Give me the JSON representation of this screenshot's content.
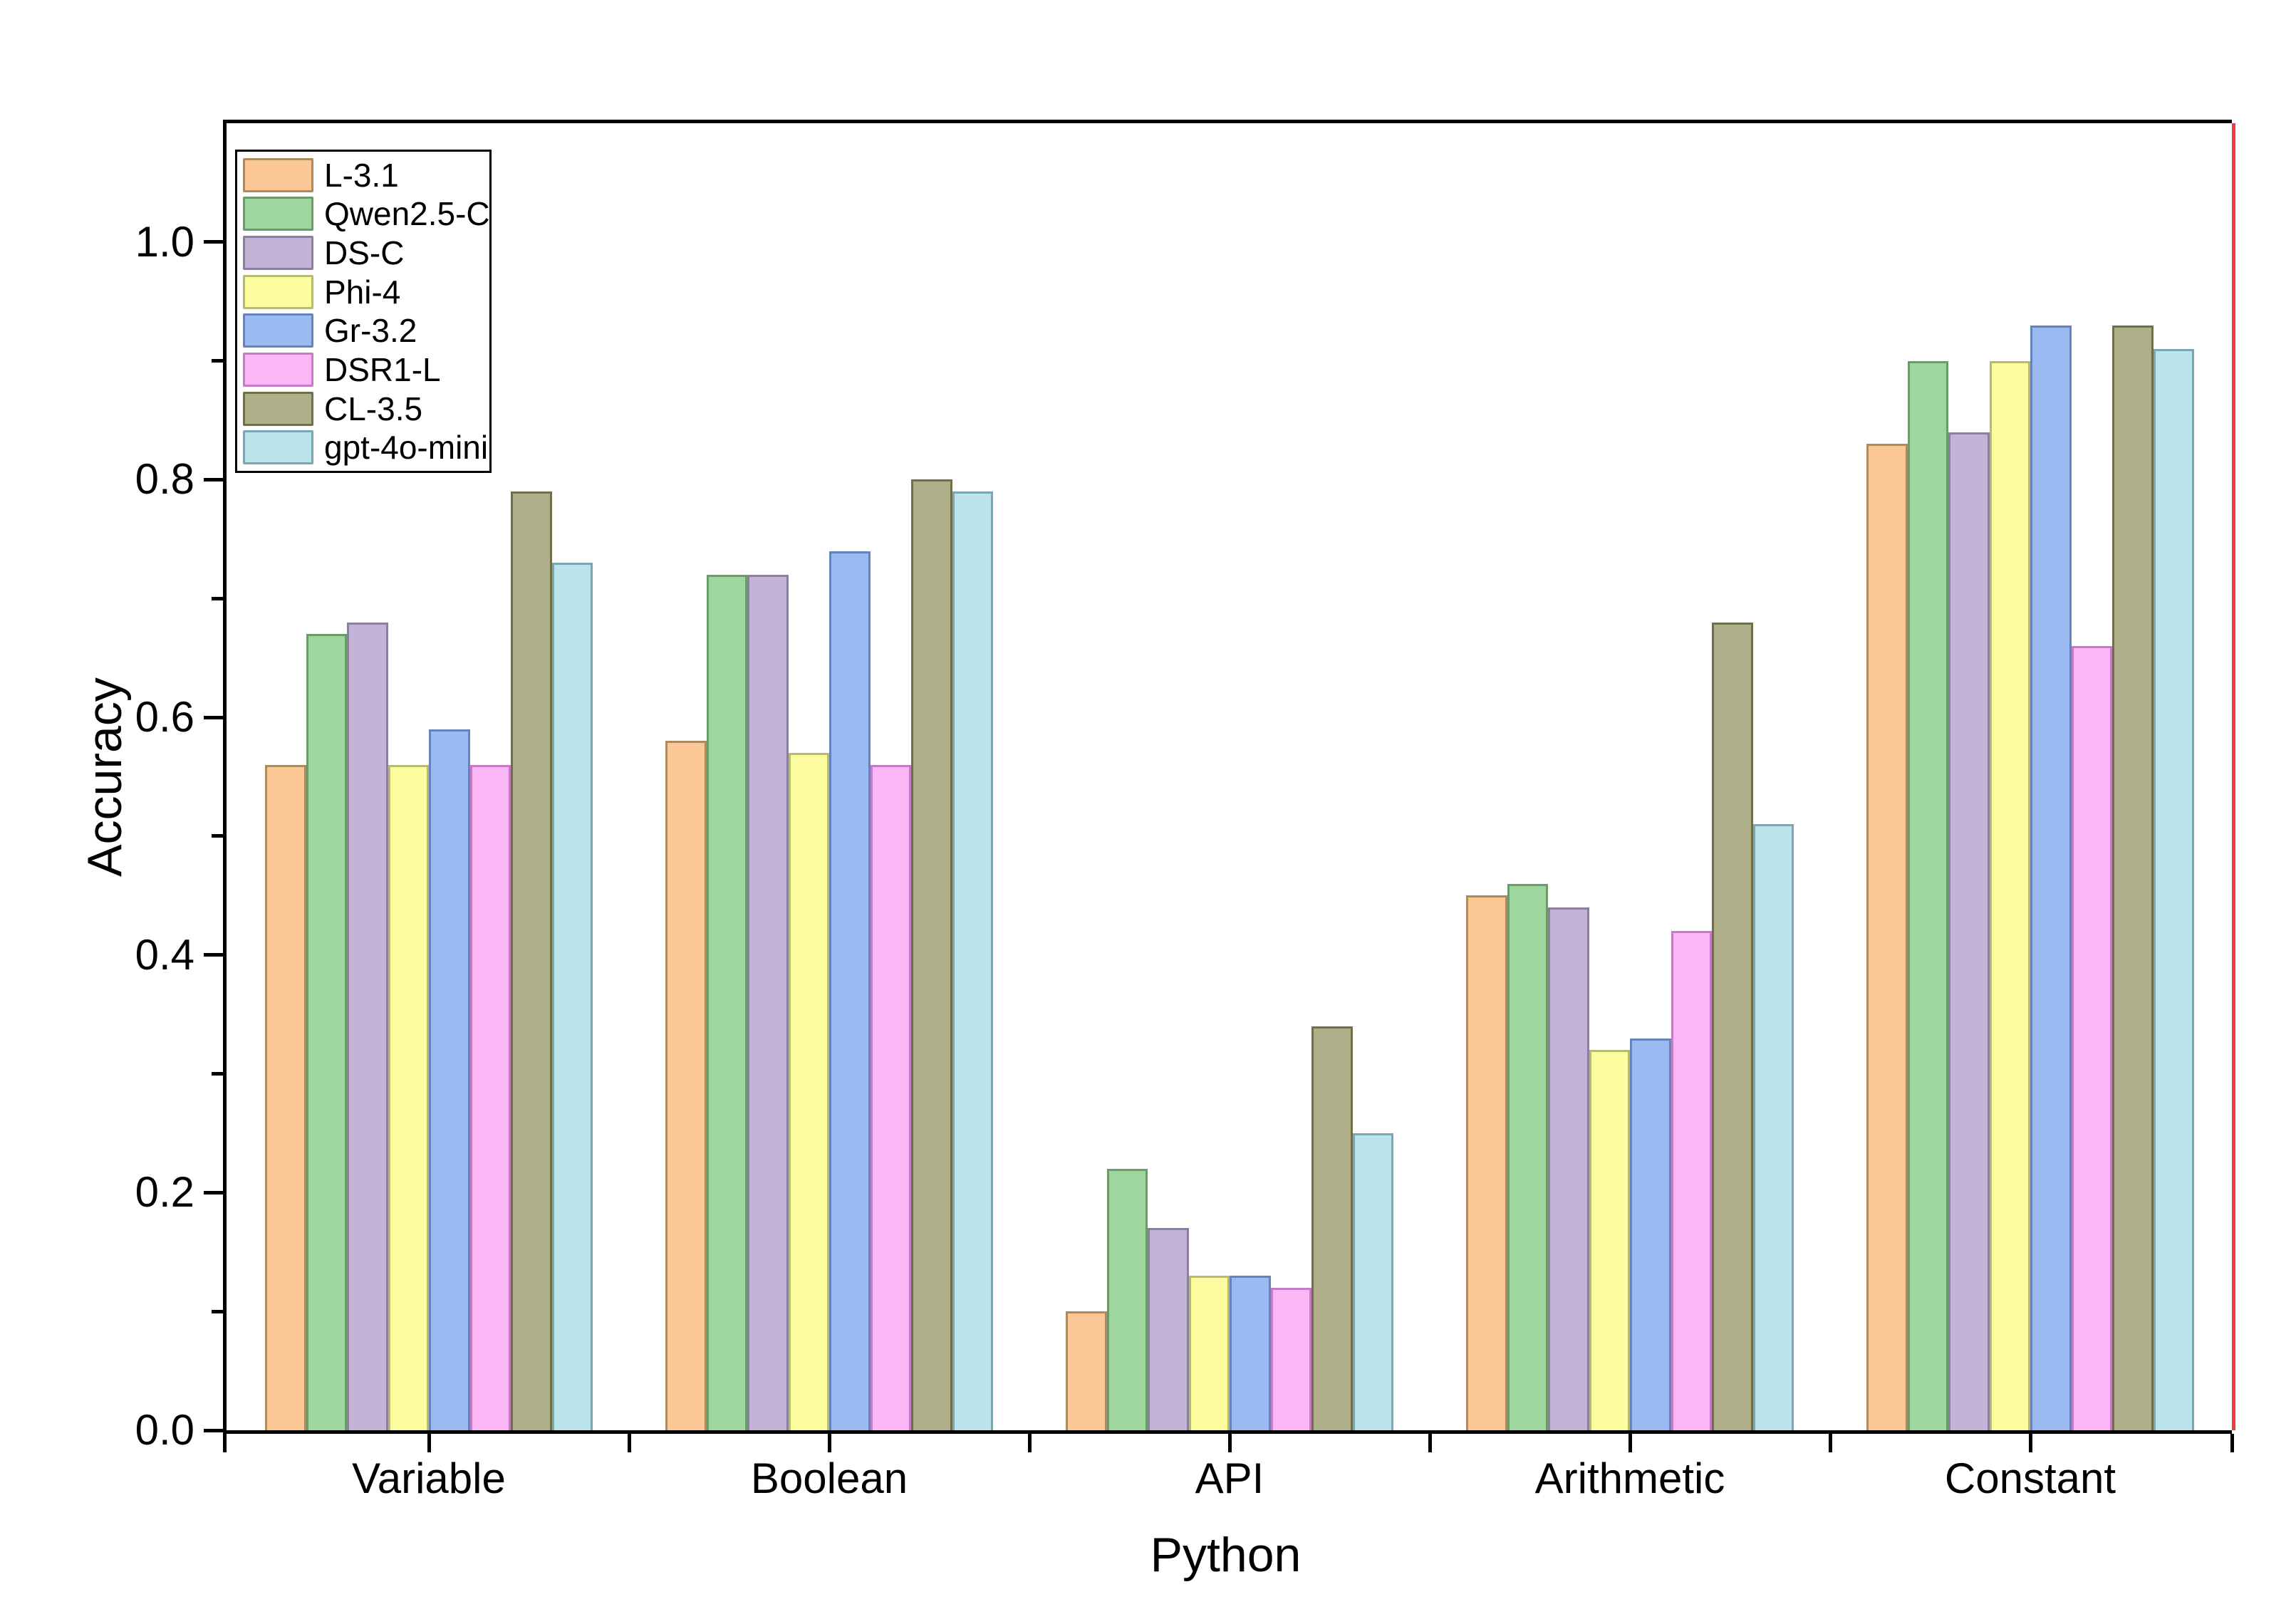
{
  "chart_data": {
    "type": "bar",
    "title": "",
    "xlabel": "Python",
    "ylabel": "Accuracy",
    "categories": [
      "Variable",
      "Boolean",
      "API",
      "Arithmetic",
      "Constant"
    ],
    "series": [
      {
        "name": "L-3.1",
        "fill": "#FBC794",
        "stroke": "#B08A5F",
        "values": [
          0.56,
          0.58,
          0.1,
          0.45,
          0.83
        ]
      },
      {
        "name": "Qwen2.5-C",
        "fill": "#9FD69D",
        "stroke": "#6A9C69",
        "values": [
          0.67,
          0.72,
          0.22,
          0.46,
          0.9
        ]
      },
      {
        "name": "DS-C",
        "fill": "#C4B3D6",
        "stroke": "#8B7F9E",
        "values": [
          0.68,
          0.72,
          0.17,
          0.44,
          0.84
        ]
      },
      {
        "name": "Phi-4",
        "fill": "#FDFDA0",
        "stroke": "#B9BA6E",
        "values": [
          0.56,
          0.57,
          0.13,
          0.32,
          0.9
        ]
      },
      {
        "name": "Gr-3.2",
        "fill": "#9BBAF1",
        "stroke": "#6484BE",
        "values": [
          0.59,
          0.74,
          0.13,
          0.33,
          0.93
        ]
      },
      {
        "name": "DSR1-L",
        "fill": "#FBB6F6",
        "stroke": "#C77BC7",
        "values": [
          0.56,
          0.56,
          0.12,
          0.42,
          0.66
        ]
      },
      {
        "name": "CL-3.5",
        "fill": "#AFB089",
        "stroke": "#6F7048",
        "values": [
          0.79,
          0.8,
          0.34,
          0.68,
          0.93
        ]
      },
      {
        "name": "gpt-4o-mini",
        "fill": "#BAE4EA",
        "stroke": "#78A7B6",
        "values": [
          0.73,
          0.79,
          0.25,
          0.51,
          0.91
        ]
      }
    ],
    "ylim": [
      0,
      1.1
    ],
    "yticks": [
      0.0,
      0.2,
      0.4,
      0.6,
      0.8,
      1.0
    ],
    "ytick_labels": [
      "0.0",
      "0.2",
      "0.4",
      "0.6",
      "0.8",
      "1.0"
    ],
    "yminor_ticks": [
      0.1,
      0.3,
      0.5,
      0.7,
      0.9
    ],
    "grid": false,
    "legend_position": "top-left",
    "frame_right_line_color": "#EE3B45",
    "axis_color": "#000000"
  }
}
